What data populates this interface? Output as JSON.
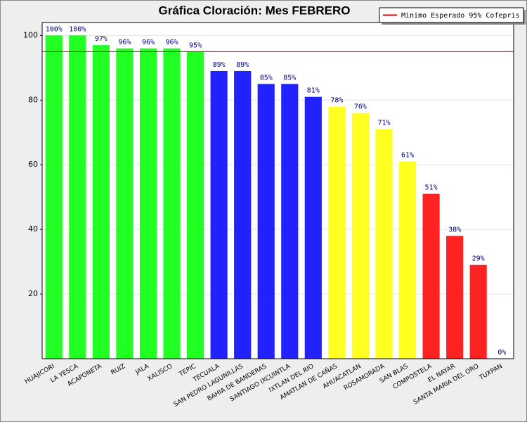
{
  "chart_data": {
    "type": "bar",
    "title": "Gráfica Cloración: Mes FEBRERO",
    "categories": [
      "HUAJICORI",
      "LA YESCA",
      "ACAPONETA",
      "RUIZ",
      "JALA",
      "XALISCO",
      "TEPIC",
      "TECUALA",
      "SAN PEDRO LAGUNILLAS",
      "BAHIA DE BANDERAS",
      "SANTIAGO IXCUINTLA",
      "IXTLAN DEL RIO",
      "AMATLAN DE CAÑAS",
      "AHUACATLAN",
      "ROSAMORADA",
      "SAN BLAS",
      "COMPOSTELA",
      "EL NAYAR",
      "SANTA MARIA DEL ORO",
      "TUXPAN"
    ],
    "values": [
      100,
      100,
      97,
      96,
      96,
      96,
      95,
      89,
      89,
      85,
      85,
      81,
      78,
      76,
      71,
      61,
      51,
      38,
      29,
      0
    ],
    "value_labels": [
      "100%",
      "100%",
      "97%",
      "96%",
      "96%",
      "96%",
      "95%",
      "89%",
      "89%",
      "85%",
      "85%",
      "81%",
      "78%",
      "76%",
      "71%",
      "61%",
      "51%",
      "38%",
      "29%",
      "0%"
    ],
    "colors": [
      "#22ff22",
      "#22ff22",
      "#22ff22",
      "#22ff22",
      "#22ff22",
      "#22ff22",
      "#22ff22",
      "#2222ff",
      "#2222ff",
      "#2222ff",
      "#2222ff",
      "#2222ff",
      "#ffff22",
      "#ffff22",
      "#ffff22",
      "#ffff22",
      "#ff2222",
      "#ff2222",
      "#ff2222",
      "#ff2222"
    ],
    "ylim": [
      0,
      104
    ],
    "yticks": [
      20,
      40,
      60,
      80,
      100
    ],
    "grid": true,
    "reference_line": {
      "value": 95,
      "label": "Minimo Esperado 95% Cofepris",
      "color": "#dd0000"
    },
    "legend_position": "top-right"
  }
}
